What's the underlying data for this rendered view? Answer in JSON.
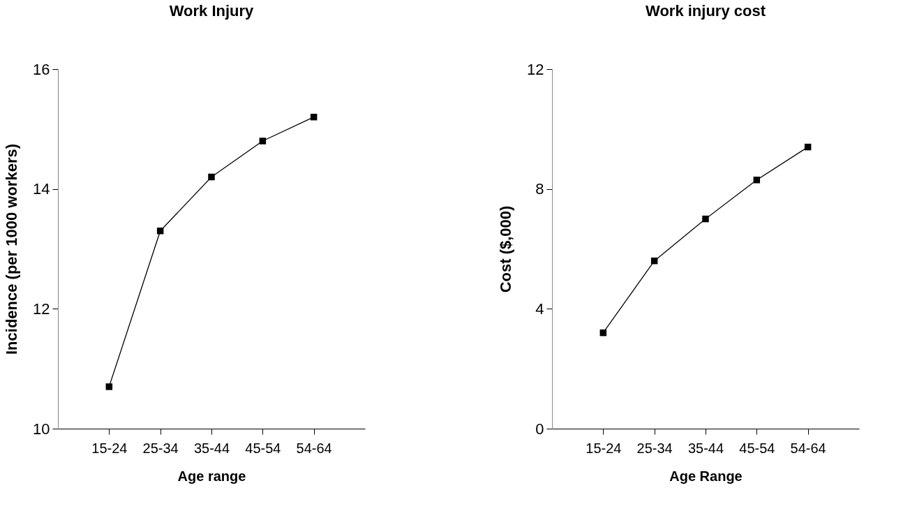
{
  "chart_data": [
    {
      "type": "line",
      "title": "Work Injury",
      "xlabel": "Age range",
      "ylabel": "Incidence (per 1000 workers)",
      "categories": [
        "15-24",
        "25-34",
        "35-44",
        "45-54",
        "54-64"
      ],
      "series": [
        {
          "color": "#000000",
          "values": [
            10.7,
            13.3,
            14.2,
            14.8,
            15.2
          ]
        }
      ],
      "ylim": [
        10,
        16
      ],
      "yticks": [
        10,
        12,
        14,
        16
      ],
      "grid": false,
      "marker": "square",
      "line_style": "solid"
    },
    {
      "type": "line",
      "title": "Work injury cost",
      "xlabel": "Age Range",
      "ylabel": "Cost ($,000)",
      "categories": [
        "15-24",
        "25-34",
        "35-44",
        "45-54",
        "54-64"
      ],
      "series": [
        {
          "color": "#000000",
          "values": [
            3.2,
            5.6,
            7.0,
            8.3,
            9.4
          ]
        }
      ],
      "ylim": [
        0,
        12
      ],
      "yticks": [
        0,
        4,
        8,
        12
      ],
      "grid": false,
      "marker": "square",
      "line_style": "solid"
    }
  ]
}
